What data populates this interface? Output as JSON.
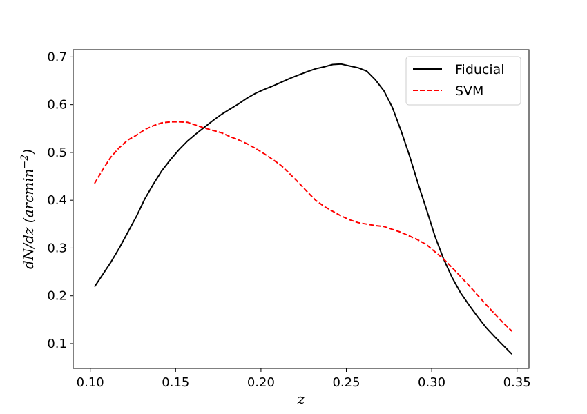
{
  "chart_data": {
    "type": "line",
    "xlabel": "z",
    "ylabel": "dN/dz (arcmin",
    "ylabel_sup": "−2",
    "ylabel_close": ")",
    "xlim": [
      0.09,
      0.357
    ],
    "ylim": [
      0.048,
      0.715
    ],
    "xticks": [
      0.1,
      0.15,
      0.2,
      0.25,
      0.3,
      0.35
    ],
    "xtick_labels": [
      "0.10",
      "0.15",
      "0.20",
      "0.25",
      "0.30",
      "0.35"
    ],
    "yticks": [
      0.1,
      0.2,
      0.3,
      0.4,
      0.5,
      0.6,
      0.7
    ],
    "ytick_labels": [
      "0.1",
      "0.2",
      "0.3",
      "0.4",
      "0.5",
      "0.6",
      "0.7"
    ],
    "grid": false,
    "legend_position": "top-right",
    "series": [
      {
        "name": "Fiducial",
        "color": "#000000",
        "dash": "solid",
        "x": [
          0.1025,
          0.107,
          0.112,
          0.117,
          0.122,
          0.127,
          0.132,
          0.137,
          0.142,
          0.147,
          0.152,
          0.157,
          0.162,
          0.167,
          0.172,
          0.177,
          0.182,
          0.187,
          0.192,
          0.197,
          0.202,
          0.207,
          0.212,
          0.217,
          0.222,
          0.227,
          0.232,
          0.237,
          0.242,
          0.247,
          0.252,
          0.257,
          0.262,
          0.267,
          0.272,
          0.277,
          0.282,
          0.287,
          0.292,
          0.297,
          0.302,
          0.307,
          0.312,
          0.317,
          0.322,
          0.327,
          0.332,
          0.337,
          0.342,
          0.347
        ],
        "y": [
          0.219,
          0.243,
          0.27,
          0.3,
          0.333,
          0.366,
          0.403,
          0.434,
          0.462,
          0.485,
          0.506,
          0.524,
          0.539,
          0.553,
          0.567,
          0.58,
          0.591,
          0.602,
          0.614,
          0.624,
          0.632,
          0.639,
          0.647,
          0.655,
          0.662,
          0.669,
          0.675,
          0.679,
          0.684,
          0.685,
          0.681,
          0.677,
          0.67,
          0.652,
          0.629,
          0.594,
          0.546,
          0.493,
          0.435,
          0.38,
          0.324,
          0.277,
          0.238,
          0.206,
          0.18,
          0.156,
          0.133,
          0.114,
          0.096,
          0.078
        ]
      },
      {
        "name": "SVM",
        "color": "#ff0000",
        "dash": "dashed",
        "x": [
          0.1025,
          0.107,
          0.112,
          0.117,
          0.122,
          0.127,
          0.132,
          0.137,
          0.142,
          0.147,
          0.152,
          0.157,
          0.162,
          0.167,
          0.172,
          0.177,
          0.182,
          0.187,
          0.192,
          0.197,
          0.202,
          0.207,
          0.212,
          0.217,
          0.222,
          0.227,
          0.232,
          0.237,
          0.242,
          0.247,
          0.252,
          0.257,
          0.262,
          0.267,
          0.272,
          0.277,
          0.282,
          0.287,
          0.292,
          0.297,
          0.302,
          0.307,
          0.312,
          0.317,
          0.322,
          0.327,
          0.332,
          0.337,
          0.342,
          0.347
        ],
        "y": [
          0.435,
          0.462,
          0.49,
          0.51,
          0.526,
          0.536,
          0.548,
          0.556,
          0.562,
          0.564,
          0.564,
          0.563,
          0.557,
          0.551,
          0.546,
          0.541,
          0.533,
          0.526,
          0.518,
          0.508,
          0.497,
          0.485,
          0.472,
          0.455,
          0.437,
          0.418,
          0.4,
          0.387,
          0.377,
          0.367,
          0.359,
          0.353,
          0.35,
          0.347,
          0.345,
          0.339,
          0.333,
          0.325,
          0.317,
          0.307,
          0.292,
          0.277,
          0.259,
          0.24,
          0.221,
          0.201,
          0.181,
          0.162,
          0.143,
          0.126
        ]
      }
    ]
  }
}
